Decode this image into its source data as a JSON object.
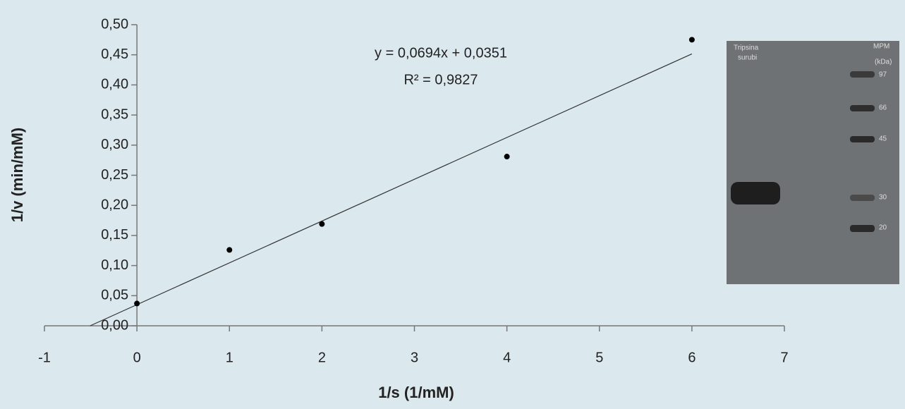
{
  "chart_data": {
    "type": "scatter",
    "x_label": "1/s (1/mM)",
    "y_label": "1/v (min/mM)",
    "x": [
      0,
      1,
      2,
      4,
      6
    ],
    "values": [
      0.037,
      0.126,
      0.169,
      0.281,
      0.475
    ],
    "color": "#000000",
    "xlim": [
      -1,
      7
    ],
    "xticks": [
      -1,
      0,
      1,
      2,
      3,
      4,
      5,
      6,
      7
    ],
    "ylim": [
      0,
      0.5
    ],
    "yticks": [
      {
        "value": 0,
        "label": "0,00"
      },
      {
        "value": 0.05,
        "label": "0,05"
      },
      {
        "value": 0.1,
        "label": "0,10"
      },
      {
        "value": 0.15,
        "label": "0,15"
      },
      {
        "value": 0.2,
        "label": "0,20"
      },
      {
        "value": 0.25,
        "label": "0,25"
      },
      {
        "value": 0.3,
        "label": "0,30"
      },
      {
        "value": 0.35,
        "label": "0,35"
      },
      {
        "value": 0.4,
        "label": "0,40"
      },
      {
        "value": 0.45,
        "label": "0,45"
      },
      {
        "value": 0.5,
        "label": "0,50"
      }
    ],
    "grid": false,
    "trendline": {
      "slope": 0.0694,
      "intercept": 0.0351,
      "equation": "y = 0,0694x + 0,0351",
      "r2": "R² = 0,9827"
    }
  },
  "inset": {
    "lane_label": [
      "Tripsina",
      "surubi"
    ],
    "marker_label": [
      "MPM",
      "(kDa)"
    ],
    "marker_sizes": [
      "97",
      "66",
      "45",
      "30",
      "20"
    ]
  }
}
